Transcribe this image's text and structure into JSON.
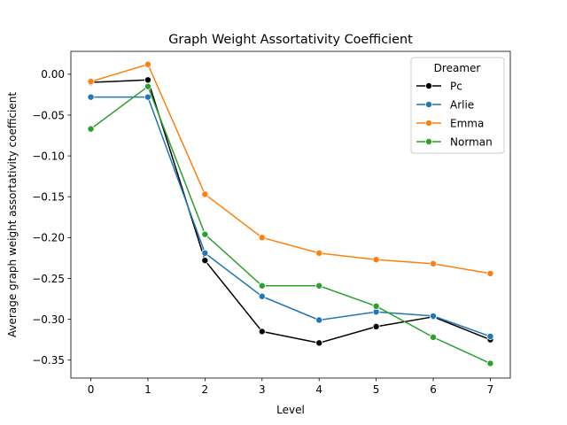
{
  "chart_data": {
    "type": "line",
    "title": "Graph Weight Assortativity Coefficient",
    "xlabel": "Level",
    "ylabel": "Average graph weight assortativity coefficient",
    "x": [
      0,
      1,
      2,
      3,
      4,
      5,
      6,
      7
    ],
    "xlim": [
      -0.35,
      7.35
    ],
    "ylim": [
      -0.372,
      0.028
    ],
    "xticks": [
      0,
      1,
      2,
      3,
      4,
      5,
      6,
      7
    ],
    "yticks": [
      0.0,
      -0.05,
      -0.1,
      -0.15,
      -0.2,
      -0.25,
      -0.3,
      -0.35
    ],
    "ytick_labels": [
      "0.00",
      "−0.05",
      "−0.10",
      "−0.15",
      "−0.20",
      "−0.25",
      "−0.30",
      "−0.35"
    ],
    "grid": false,
    "legend": {
      "title": "Dreamer",
      "position": "top-right"
    },
    "series": [
      {
        "name": "Pc",
        "color": "#000000",
        "values": [
          -0.01,
          -0.007,
          -0.228,
          -0.315,
          -0.329,
          -0.309,
          -0.297,
          -0.325
        ]
      },
      {
        "name": "Arlie",
        "color": "#1f77b4",
        "values": [
          -0.028,
          -0.028,
          -0.219,
          -0.272,
          -0.301,
          -0.291,
          -0.296,
          -0.321
        ]
      },
      {
        "name": "Emma",
        "color": "#ff7f0e",
        "values": [
          -0.009,
          0.012,
          -0.147,
          -0.2,
          -0.219,
          -0.227,
          -0.232,
          -0.244
        ]
      },
      {
        "name": "Norman",
        "color": "#2ca02c",
        "values": [
          -0.067,
          -0.015,
          -0.196,
          -0.259,
          -0.259,
          -0.284,
          -0.322,
          -0.354
        ]
      }
    ]
  }
}
